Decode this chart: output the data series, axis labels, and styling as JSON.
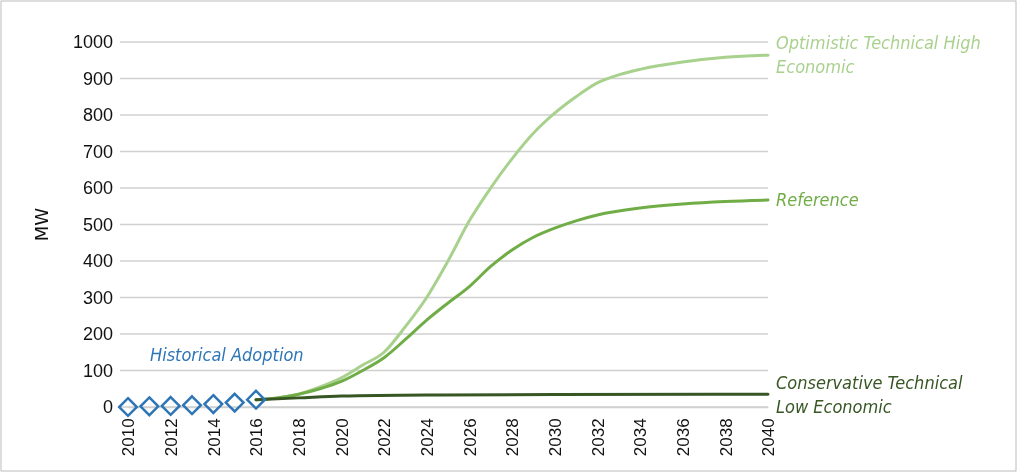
{
  "chart_data": {
    "type": "line",
    "ylabel": "MW",
    "xlim": [
      2010,
      2040
    ],
    "xticks": [
      2010,
      2012,
      2014,
      2016,
      2018,
      2020,
      2022,
      2024,
      2026,
      2028,
      2030,
      2032,
      2034,
      2036,
      2038,
      2040
    ],
    "ylim": [
      0,
      1000
    ],
    "yticks": [
      0,
      100,
      200,
      300,
      400,
      500,
      600,
      700,
      800,
      900,
      1000
    ],
    "grid": "y",
    "line_style": "solid",
    "series": [
      {
        "name": "Optimistic Technical High Economic",
        "color": "#a9d18e",
        "x": [
          2016,
          2017,
          2018,
          2019,
          2020,
          2021,
          2022,
          2023,
          2024,
          2025,
          2026,
          2027,
          2028,
          2029,
          2030,
          2031,
          2032,
          2033,
          2034,
          2036,
          2038,
          2040
        ],
        "values": [
          20,
          25,
          35,
          55,
          80,
          115,
          150,
          220,
          300,
          400,
          510,
          600,
          680,
          750,
          805,
          850,
          888,
          910,
          925,
          945,
          958,
          964
        ]
      },
      {
        "name": "Reference",
        "color": "#70ad47",
        "x": [
          2016,
          2017,
          2018,
          2019,
          2020,
          2021,
          2022,
          2023,
          2024,
          2025,
          2026,
          2027,
          2028,
          2029,
          2030,
          2031,
          2032,
          2034,
          2036,
          2038,
          2040
        ],
        "values": [
          20,
          25,
          35,
          50,
          70,
          100,
          135,
          185,
          238,
          285,
          330,
          385,
          430,
          465,
          490,
          510,
          526,
          545,
          556,
          563,
          567
        ]
      },
      {
        "name": "Conservative Technical Low Economic",
        "color": "#375623",
        "x": [
          2016,
          2018,
          2020,
          2024,
          2030,
          2040
        ],
        "values": [
          20,
          25,
          30,
          33,
          34,
          35
        ]
      },
      {
        "name": "Historical Adoption",
        "type": "scatter",
        "marker": "diamond",
        "color": "#2e75b6",
        "x": [
          2010,
          2011,
          2012,
          2013,
          2014,
          2015,
          2016
        ],
        "values": [
          0,
          2,
          3,
          5,
          8,
          12,
          20
        ]
      }
    ]
  }
}
